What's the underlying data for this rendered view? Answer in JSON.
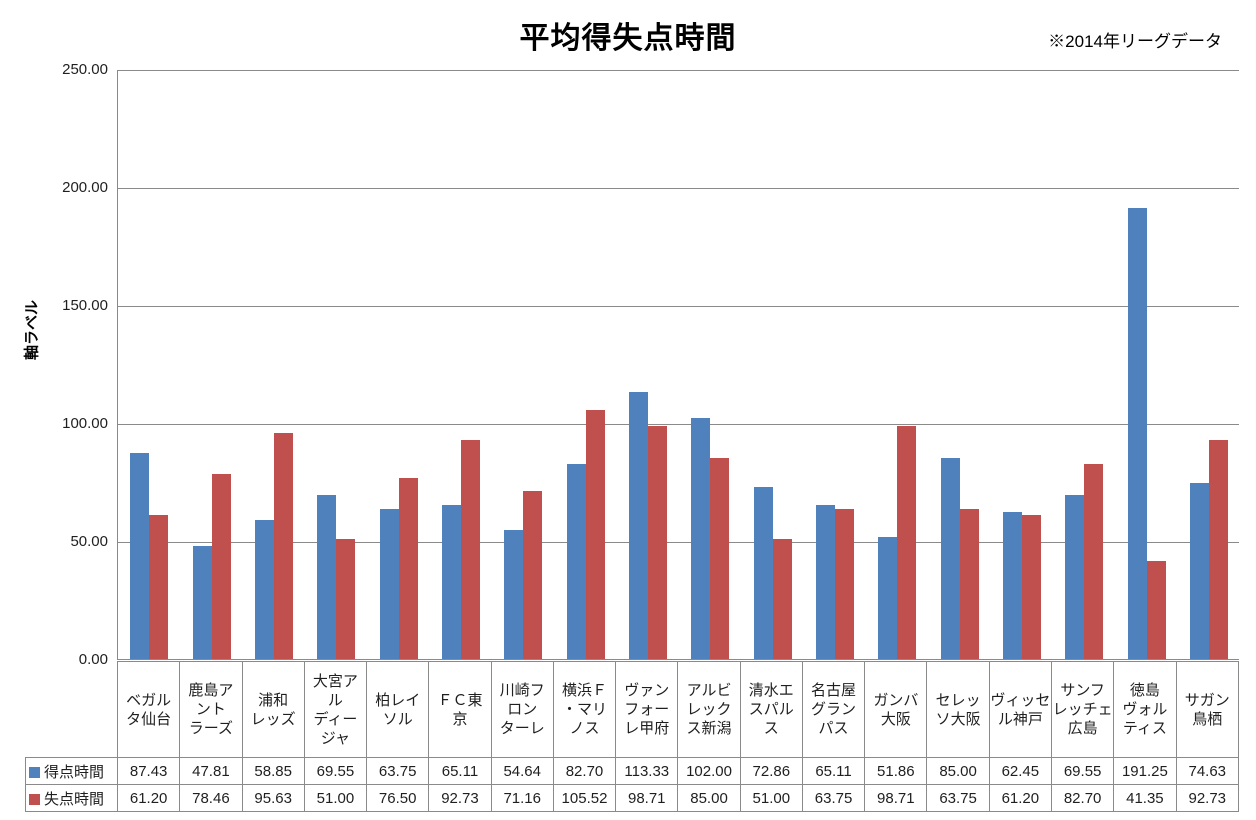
{
  "chart_data": {
    "type": "bar",
    "title": "平均得失点時間",
    "note": "※2014年リーグデータ",
    "ylabel": "軸ラベル",
    "xlabel": "",
    "ylim": [
      0,
      250
    ],
    "ytick_step": 50,
    "ytick_format_decimals": 2,
    "grid": "horizontal",
    "legend_position": "data-table-left",
    "axis_color": "#8a8a8a",
    "categories": [
      "ベガルタ仙台",
      "鹿島アントラーズ",
      "浦和レッズ",
      "大宮アルディージャ",
      "柏レイソル",
      "ＦＣ東京",
      "川崎フロンターレ",
      "横浜Ｆ・マリノス",
      "ヴァンフォーレ甲府",
      "アルビレックス新潟",
      "清水エスパルス",
      "名古屋グランパス",
      "ガンバ大阪",
      "セレッソ大阪",
      "ヴィッセル神戸",
      "サンフレッチェ広島",
      "徳島ヴォルティス",
      "サガン鳥栖"
    ],
    "categories_wrapped": [
      "ベガル\nタ仙台",
      "鹿島ア\nント\nラーズ",
      "浦和\nレッズ",
      "大宮ア\nル\nディー\nジャ",
      "柏レイ\nソル",
      "ＦＣ東\n京",
      "川崎フ\nロン\nターレ",
      "横浜Ｆ\n・マリ\nノス",
      "ヴァン\nフォー\nレ甲府",
      "アルビ\nレック\nス新潟",
      "清水エ\nスパル\nス",
      "名古屋\nグラン\nパス",
      "ガンバ\n大阪",
      "セレッ\nソ大阪",
      "ヴィッセ\nル神戸",
      "サンフ\nレッチェ\n広島",
      "徳島\nヴォル\nティス",
      "サガン\n鳥栖"
    ],
    "series": [
      {
        "name": "得点時間",
        "color": "#4F81BD",
        "values": [
          87.43,
          47.81,
          58.85,
          69.55,
          63.75,
          65.11,
          54.64,
          82.7,
          113.33,
          102.0,
          72.86,
          65.11,
          51.86,
          85.0,
          62.45,
          69.55,
          191.25,
          74.63
        ]
      },
      {
        "name": "失点時間",
        "color": "#C0504D",
        "values": [
          61.2,
          78.46,
          95.63,
          51.0,
          76.5,
          92.73,
          71.16,
          105.52,
          98.71,
          85.0,
          51.0,
          63.75,
          98.71,
          63.75,
          61.2,
          82.7,
          41.35,
          92.73
        ]
      }
    ]
  }
}
